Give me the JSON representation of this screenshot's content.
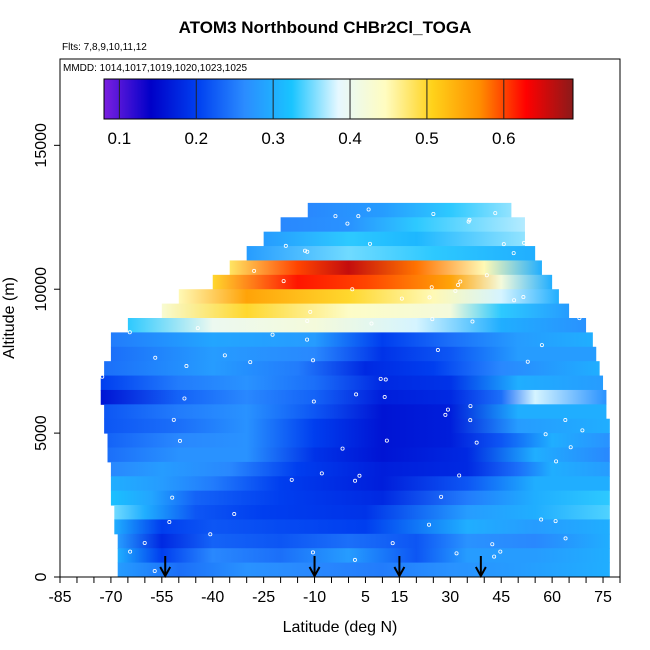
{
  "chart_data": {
    "type": "heatmap",
    "title": "ATOM3 Northbound CHBr2Cl_TOGA",
    "subtitle_flights": "Flts: 7,8,9,10,11,12",
    "subtitle_dates": "MMDD: 1014,1017,1019,1020,1023,1025",
    "xlabel": "Latitude (deg N)",
    "ylabel": "Altitude (m)",
    "xlim": [
      -85,
      80
    ],
    "ylim": [
      0,
      18000
    ],
    "x_ticks": [
      "-85",
      "-70",
      "-55",
      "-40",
      "-25",
      "-10",
      "5",
      "15",
      "30",
      "45",
      "60",
      "75"
    ],
    "y_ticks": [
      "0",
      "5000",
      "10000",
      "15000"
    ],
    "grid": false,
    "colorbar": {
      "position": "top-left",
      "ticks": [
        "0.1",
        "0.2",
        "0.3",
        "0.4",
        "0.5",
        "0.6"
      ],
      "range": [
        0.08,
        0.69
      ],
      "colors": [
        "#7b1fe0",
        "#0000c8",
        "#0040f0",
        "#2b8cff",
        "#19c4ff",
        "#e6f8ff",
        "#fffcc0",
        "#ffd21a",
        "#ff8f00",
        "#ff0000",
        "#8b1a1a"
      ]
    },
    "arrow_latitudes": [
      -54,
      -10,
      15,
      39
    ],
    "bands": [
      {
        "alt": 12500,
        "lat_min": -12,
        "lat_max": 48,
        "stops": [
          [
            -12,
            0.26
          ],
          [
            10,
            0.28
          ],
          [
            30,
            0.33
          ],
          [
            48,
            0.36
          ]
        ]
      },
      {
        "alt": 12000,
        "lat_min": -20,
        "lat_max": 52,
        "stops": [
          [
            -20,
            0.26
          ],
          [
            0,
            0.27
          ],
          [
            20,
            0.33
          ],
          [
            52,
            0.37
          ]
        ]
      },
      {
        "alt": 11500,
        "lat_min": -25,
        "lat_max": 52,
        "stops": [
          [
            -25,
            0.28
          ],
          [
            0,
            0.33
          ],
          [
            20,
            0.31
          ],
          [
            52,
            0.36
          ]
        ]
      },
      {
        "alt": 11000,
        "lat_min": -30,
        "lat_max": 55,
        "stops": [
          [
            -30,
            0.28
          ],
          [
            0,
            0.35
          ],
          [
            25,
            0.33
          ],
          [
            55,
            0.3
          ]
        ]
      },
      {
        "alt": 10500,
        "lat_min": -35,
        "lat_max": 57,
        "stops": [
          [
            -35,
            0.48
          ],
          [
            -15,
            0.6
          ],
          [
            0,
            0.66
          ],
          [
            20,
            0.58
          ],
          [
            40,
            0.45
          ],
          [
            57,
            0.3
          ]
        ]
      },
      {
        "alt": 10000,
        "lat_min": -40,
        "lat_max": 60,
        "stops": [
          [
            -40,
            0.5
          ],
          [
            -15,
            0.62
          ],
          [
            5,
            0.6
          ],
          [
            30,
            0.55
          ],
          [
            45,
            0.42
          ],
          [
            60,
            0.3
          ]
        ]
      },
      {
        "alt": 9500,
        "lat_min": -50,
        "lat_max": 62,
        "stops": [
          [
            -50,
            0.45
          ],
          [
            -30,
            0.55
          ],
          [
            0,
            0.5
          ],
          [
            25,
            0.45
          ],
          [
            45,
            0.38
          ],
          [
            62,
            0.3
          ]
        ]
      },
      {
        "alt": 9000,
        "lat_min": -55,
        "lat_max": 65,
        "stops": [
          [
            -55,
            0.43
          ],
          [
            -30,
            0.5
          ],
          [
            0,
            0.44
          ],
          [
            30,
            0.42
          ],
          [
            45,
            0.33
          ],
          [
            65,
            0.28
          ]
        ]
      },
      {
        "alt": 8500,
        "lat_min": -65,
        "lat_max": 70,
        "stops": [
          [
            -65,
            0.33
          ],
          [
            -40,
            0.4
          ],
          [
            -10,
            0.42
          ],
          [
            20,
            0.38
          ],
          [
            45,
            0.3
          ],
          [
            70,
            0.27
          ]
        ]
      },
      {
        "alt": 8000,
        "lat_min": -70,
        "lat_max": 72,
        "stops": [
          [
            -70,
            0.25
          ],
          [
            -40,
            0.29
          ],
          [
            -10,
            0.28
          ],
          [
            10,
            0.2
          ],
          [
            30,
            0.24
          ],
          [
            50,
            0.28
          ],
          [
            72,
            0.3
          ]
        ]
      },
      {
        "alt": 7500,
        "lat_min": -70,
        "lat_max": 73,
        "stops": [
          [
            -70,
            0.24
          ],
          [
            -40,
            0.28
          ],
          [
            -10,
            0.26
          ],
          [
            10,
            0.19
          ],
          [
            30,
            0.22
          ],
          [
            50,
            0.28
          ],
          [
            73,
            0.28
          ]
        ]
      },
      {
        "alt": 7000,
        "lat_min": -72,
        "lat_max": 74,
        "stops": [
          [
            -72,
            0.24
          ],
          [
            -40,
            0.28
          ],
          [
            -15,
            0.25
          ],
          [
            5,
            0.18
          ],
          [
            25,
            0.2
          ],
          [
            45,
            0.26
          ],
          [
            74,
            0.3
          ]
        ]
      },
      {
        "alt": 6500,
        "lat_min": -73,
        "lat_max": 75,
        "stops": [
          [
            -73,
            0.2
          ],
          [
            -50,
            0.25
          ],
          [
            -30,
            0.27
          ],
          [
            -10,
            0.24
          ],
          [
            10,
            0.18
          ],
          [
            30,
            0.19
          ],
          [
            50,
            0.3
          ],
          [
            75,
            0.28
          ]
        ]
      },
      {
        "alt": 6000,
        "lat_min": -73,
        "lat_max": 76,
        "stops": [
          [
            -73,
            0.16
          ],
          [
            -50,
            0.23
          ],
          [
            -30,
            0.26
          ],
          [
            -10,
            0.23
          ],
          [
            10,
            0.17
          ],
          [
            30,
            0.18
          ],
          [
            45,
            0.24
          ],
          [
            55,
            0.38
          ],
          [
            76,
            0.27
          ]
        ]
      },
      {
        "alt": 5500,
        "lat_min": -72,
        "lat_max": 76,
        "stops": [
          [
            -72,
            0.22
          ],
          [
            -50,
            0.25
          ],
          [
            -30,
            0.27
          ],
          [
            -10,
            0.22
          ],
          [
            10,
            0.16
          ],
          [
            30,
            0.17
          ],
          [
            50,
            0.3
          ],
          [
            76,
            0.3
          ]
        ]
      },
      {
        "alt": 5000,
        "lat_min": -72,
        "lat_max": 77,
        "stops": [
          [
            -72,
            0.22
          ],
          [
            -50,
            0.24
          ],
          [
            -30,
            0.27
          ],
          [
            -10,
            0.2
          ],
          [
            10,
            0.16
          ],
          [
            30,
            0.17
          ],
          [
            50,
            0.28
          ],
          [
            77,
            0.3
          ]
        ]
      },
      {
        "alt": 4500,
        "lat_min": -71,
        "lat_max": 77,
        "stops": [
          [
            -71,
            0.23
          ],
          [
            -50,
            0.26
          ],
          [
            -30,
            0.27
          ],
          [
            -10,
            0.2
          ],
          [
            10,
            0.16
          ],
          [
            30,
            0.17
          ],
          [
            45,
            0.22
          ],
          [
            60,
            0.3
          ],
          [
            77,
            0.27
          ]
        ]
      },
      {
        "alt": 4000,
        "lat_min": -71,
        "lat_max": 77,
        "stops": [
          [
            -71,
            0.24
          ],
          [
            -50,
            0.27
          ],
          [
            -30,
            0.27
          ],
          [
            -10,
            0.19
          ],
          [
            10,
            0.16
          ],
          [
            35,
            0.18
          ],
          [
            55,
            0.3
          ],
          [
            77,
            0.26
          ]
        ]
      },
      {
        "alt": 3500,
        "lat_min": -70,
        "lat_max": 77,
        "stops": [
          [
            -70,
            0.26
          ],
          [
            -55,
            0.28
          ],
          [
            -35,
            0.26
          ],
          [
            -15,
            0.2
          ],
          [
            10,
            0.17
          ],
          [
            35,
            0.18
          ],
          [
            50,
            0.24
          ],
          [
            60,
            0.3
          ],
          [
            77,
            0.28
          ]
        ]
      },
      {
        "alt": 3000,
        "lat_min": -70,
        "lat_max": 77,
        "stops": [
          [
            -70,
            0.3
          ],
          [
            -55,
            0.28
          ],
          [
            -40,
            0.25
          ],
          [
            -20,
            0.2
          ],
          [
            10,
            0.17
          ],
          [
            35,
            0.22
          ],
          [
            55,
            0.3
          ],
          [
            77,
            0.3
          ]
        ]
      },
      {
        "alt": 2500,
        "lat_min": -70,
        "lat_max": 77,
        "stops": [
          [
            -70,
            0.32
          ],
          [
            -58,
            0.29
          ],
          [
            -45,
            0.23
          ],
          [
            -20,
            0.2
          ],
          [
            10,
            0.18
          ],
          [
            35,
            0.25
          ],
          [
            55,
            0.3
          ],
          [
            77,
            0.33
          ]
        ]
      },
      {
        "alt": 2000,
        "lat_min": -69,
        "lat_max": 77,
        "stops": [
          [
            -69,
            0.35
          ],
          [
            -60,
            0.3
          ],
          [
            -45,
            0.22
          ],
          [
            -25,
            0.2
          ],
          [
            5,
            0.19
          ],
          [
            35,
            0.28
          ],
          [
            55,
            0.3
          ],
          [
            77,
            0.34
          ]
        ]
      },
      {
        "alt": 1500,
        "lat_min": -69,
        "lat_max": 77,
        "stops": [
          [
            -69,
            0.3
          ],
          [
            -55,
            0.2
          ],
          [
            -40,
            0.22
          ],
          [
            -20,
            0.21
          ],
          [
            5,
            0.2
          ],
          [
            35,
            0.3
          ],
          [
            55,
            0.28
          ],
          [
            77,
            0.3
          ]
        ]
      },
      {
        "alt": 1000,
        "lat_min": -68,
        "lat_max": 77,
        "stops": [
          [
            -68,
            0.28
          ],
          [
            -55,
            0.18
          ],
          [
            -40,
            0.23
          ],
          [
            -20,
            0.22
          ],
          [
            0,
            0.24
          ],
          [
            20,
            0.22
          ],
          [
            35,
            0.27
          ],
          [
            55,
            0.26
          ],
          [
            77,
            0.3
          ]
        ]
      },
      {
        "alt": 500,
        "lat_min": -68,
        "lat_max": 77,
        "stops": [
          [
            -68,
            0.3
          ],
          [
            -55,
            0.2
          ],
          [
            -40,
            0.26
          ],
          [
            -20,
            0.24
          ],
          [
            0,
            0.28
          ],
          [
            20,
            0.22
          ],
          [
            35,
            0.28
          ],
          [
            55,
            0.28
          ],
          [
            77,
            0.3
          ]
        ]
      },
      {
        "alt": 0,
        "lat_min": -68,
        "lat_max": 77,
        "stops": [
          [
            -68,
            0.28
          ],
          [
            -50,
            0.24
          ],
          [
            -30,
            0.27
          ],
          [
            -10,
            0.26
          ],
          [
            10,
            0.25
          ],
          [
            30,
            0.27
          ],
          [
            50,
            0.28
          ],
          [
            77,
            0.3
          ]
        ]
      }
    ]
  }
}
